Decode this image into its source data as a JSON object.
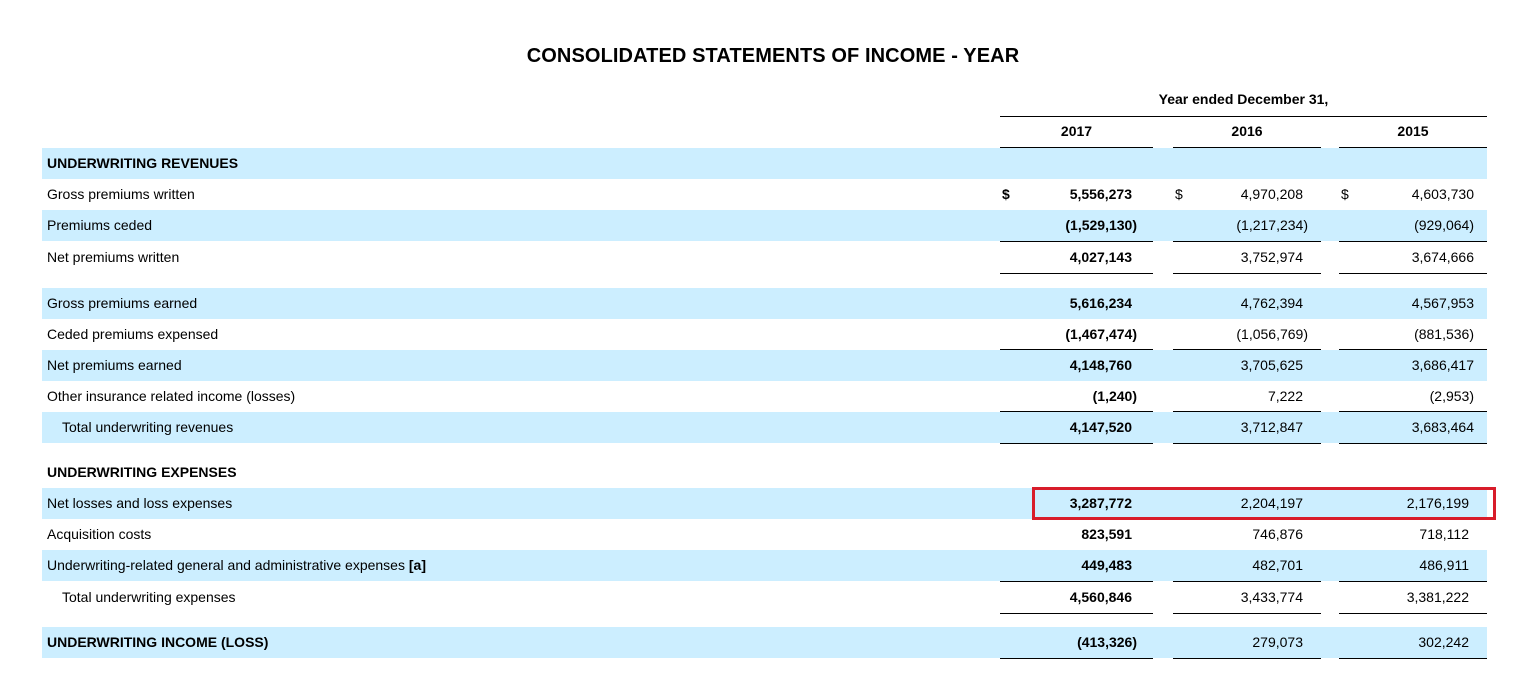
{
  "title": "CONSOLIDATED STATEMENTS OF INCOME - YEAR",
  "period_header": "Year ended December 31,",
  "years": [
    "2017",
    "2016",
    "2015"
  ],
  "currency_symbol": "$",
  "rows": [
    {
      "label": "UNDERWRITING REVENUES"
    },
    {
      "label": "Gross premiums written",
      "v2017": "5,556,273",
      "v2016": "4,970,208",
      "v2015": "4,603,730"
    },
    {
      "label": "Premiums ceded",
      "v2017": "(1,529,130)",
      "v2016": "(1,217,234)",
      "v2015": "(929,064)"
    },
    {
      "label": "Net premiums written",
      "v2017": "4,027,143",
      "v2016": "3,752,974",
      "v2015": "3,674,666"
    },
    {
      "label": "Gross premiums earned",
      "v2017": "5,616,234",
      "v2016": "4,762,394",
      "v2015": "4,567,953"
    },
    {
      "label": "Ceded premiums expensed",
      "v2017": "(1,467,474)",
      "v2016": "(1,056,769)",
      "v2015": "(881,536)"
    },
    {
      "label": "Net premiums earned",
      "v2017": "4,148,760",
      "v2016": "3,705,625",
      "v2015": "3,686,417"
    },
    {
      "label": "Other insurance related income (losses)",
      "v2017": "(1,240)",
      "v2016": "7,222",
      "v2015": "(2,953)"
    },
    {
      "label": "Total underwriting revenues",
      "v2017": "4,147,520",
      "v2016": "3,712,847",
      "v2015": "3,683,464"
    },
    {
      "label": "UNDERWRITING EXPENSES"
    },
    {
      "label": "Net losses and loss expenses",
      "v2017": "3,287,772",
      "v2016": "2,204,197",
      "v2015": "2,176,199"
    },
    {
      "label": "Acquisition costs",
      "v2017": "823,591",
      "v2016": "746,876",
      "v2015": "718,112"
    },
    {
      "label": "Underwriting-related general and administrative expenses",
      "footnote": "[a]",
      "v2017": "449,483",
      "v2016": "482,701",
      "v2015": "486,911"
    },
    {
      "label": "Total underwriting expenses",
      "v2017": "4,560,846",
      "v2016": "3,433,774",
      "v2015": "3,381,222"
    },
    {
      "label": "UNDERWRITING INCOME (LOSS)",
      "v2017": "(413,326)",
      "v2016": "279,073",
      "v2015": "302,242"
    }
  ],
  "highlight_color": "#d81c2a",
  "row_shade_color": "#cceeff"
}
